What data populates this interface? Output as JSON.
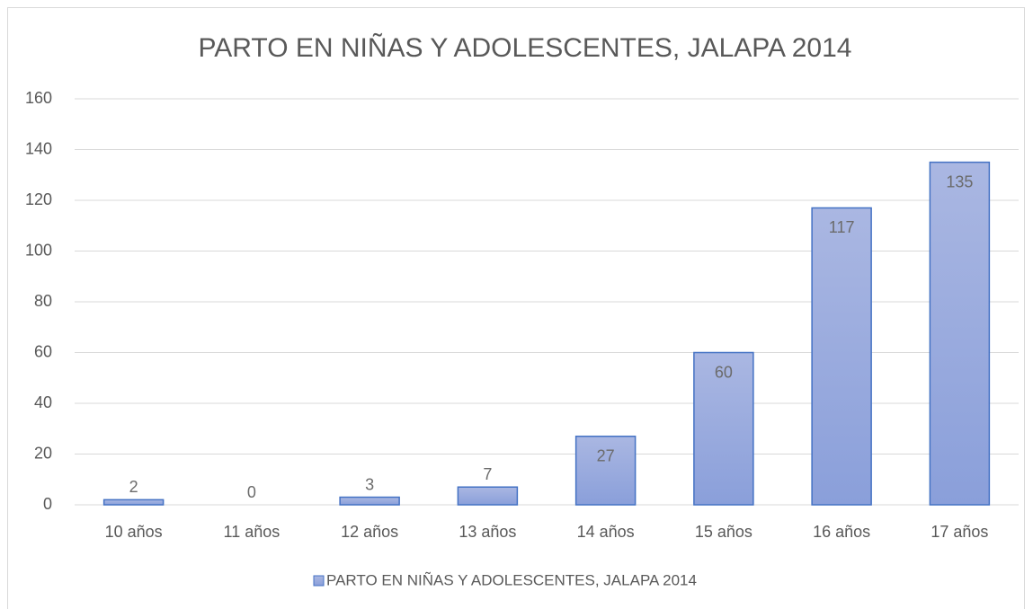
{
  "chart_data": {
    "type": "bar",
    "title": "PARTO EN NIÑAS Y ADOLESCENTES, JALAPA 2014",
    "categories": [
      "10 años",
      "11 años",
      "12 años",
      "13 años",
      "14 años",
      "15 años",
      "16 años",
      "17 años"
    ],
    "series": [
      {
        "name": "PARTO EN NIÑAS Y ADOLESCENTES, JALAPA 2014",
        "color": "#4472c4",
        "values": [
          2,
          0,
          3,
          7,
          27,
          60,
          117,
          135
        ]
      }
    ],
    "ylim": [
      0,
      160
    ],
    "yticks": [
      0,
      20,
      40,
      60,
      80,
      100,
      120,
      140,
      160
    ],
    "grid": true,
    "legend": "bottom",
    "data_labels": true
  }
}
